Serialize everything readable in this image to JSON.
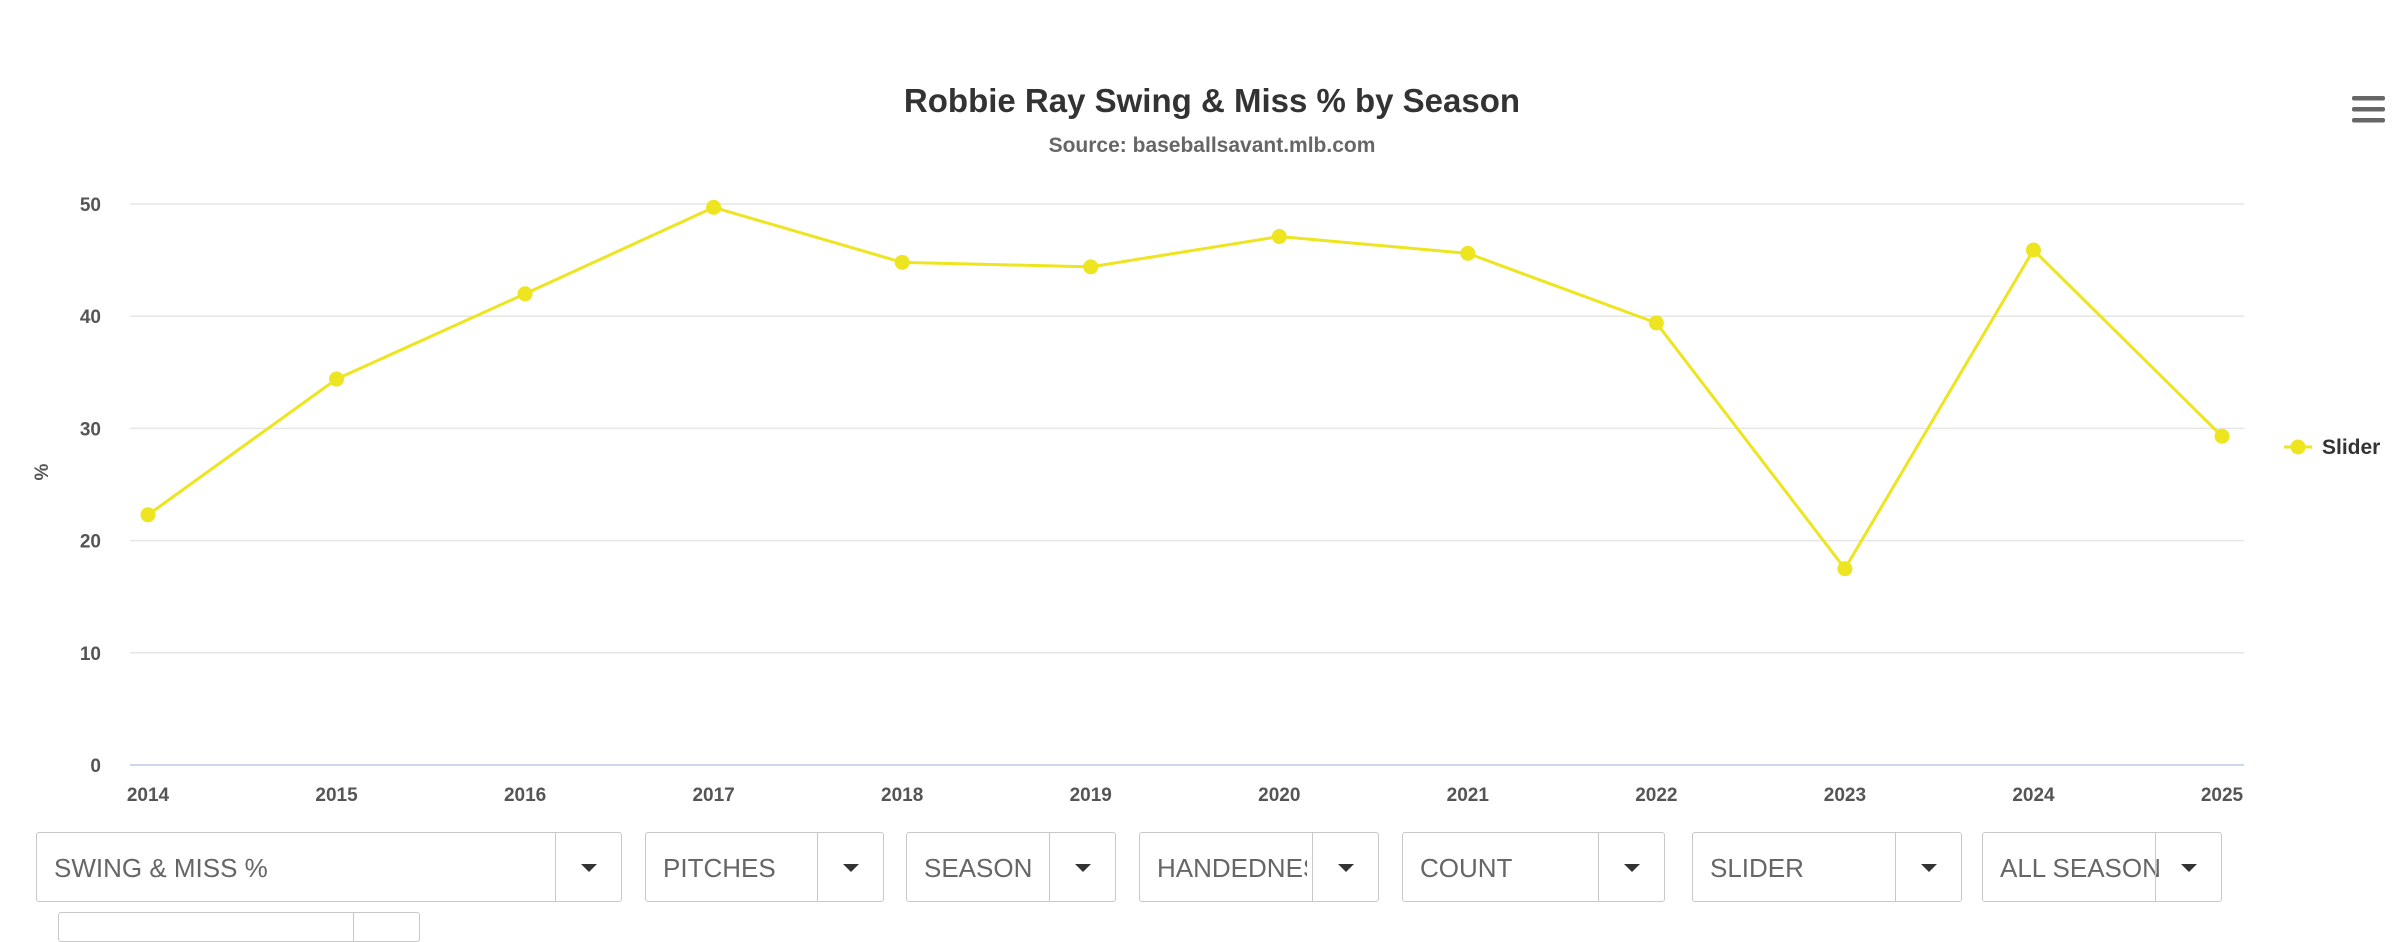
{
  "chart_data": {
    "type": "line",
    "title": "Robbie Ray Swing & Miss % by Season",
    "subtitle": "Source: baseballsavant.mlb.com",
    "xlabel": "",
    "ylabel": "%",
    "x": [
      "2014",
      "2015",
      "2016",
      "2017",
      "2018",
      "2019",
      "2020",
      "2021",
      "2022",
      "2023",
      "2024",
      "2025"
    ],
    "ylim": [
      0,
      50
    ],
    "yticks": [
      0,
      10,
      20,
      30,
      40,
      50
    ],
    "grid": true,
    "legend_position": "right",
    "series": [
      {
        "name": "Slider",
        "color": "#ede51f",
        "values": [
          22.3,
          34.4,
          42.0,
          49.7,
          44.8,
          44.4,
          47.1,
          45.6,
          39.4,
          17.5,
          45.9,
          29.3
        ]
      }
    ]
  },
  "menu": {
    "icon": "hamburger-menu-icon"
  },
  "filters": [
    {
      "name": "metric",
      "value": "SWING & MISS %"
    },
    {
      "name": "pitches",
      "value": "PITCHES"
    },
    {
      "name": "season",
      "value": "SEASON"
    },
    {
      "name": "handedness",
      "value": "HANDEDNESS"
    },
    {
      "name": "count",
      "value": "COUNT"
    },
    {
      "name": "pitch-type",
      "value": "SLIDER"
    },
    {
      "name": "seasons",
      "value": "ALL SEASONS"
    }
  ]
}
